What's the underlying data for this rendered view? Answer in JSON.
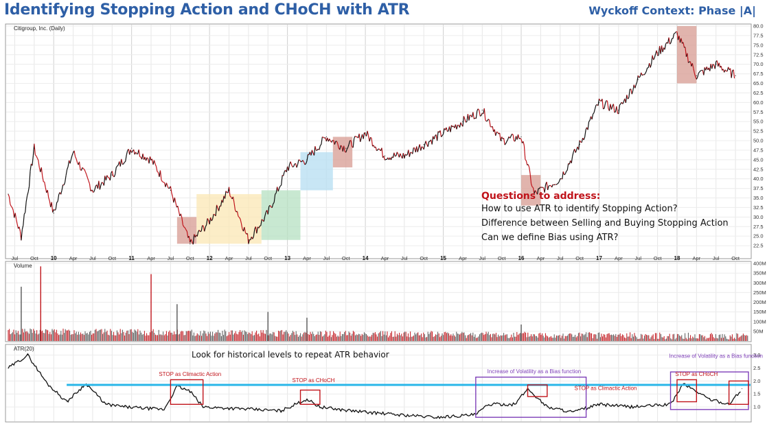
{
  "header": {
    "title": "Identifying Stopping Action and CHoCH with ATR",
    "context": "Wyckoff Context: Phase |A|"
  },
  "questions": {
    "title": "Questions to address:",
    "items": [
      "How to use ATR to identify Stopping Action?",
      "Difference between Selling and Buying Stopping Action",
      "Can we define Bias using ATR?"
    ]
  },
  "hint": "Look for historical levels to repeat ATR behavior",
  "colors": {
    "price_up": "#111111",
    "price_down": "#c0131a",
    "volume_up": "#555555",
    "volume_down": "#c0131a",
    "atr_line": "#111111",
    "reference_line": "#29b6e8",
    "box_red": "#c0131a",
    "box_purple": "#7e3fb8",
    "zone_red": "#d79b92",
    "zone_yellow": "#fbe7b4",
    "zone_green": "#b6e0c2",
    "zone_blue": "#b5def1",
    "title_blue": "#2e5fa6"
  },
  "chart_data": [
    {
      "type": "line",
      "panel": "price",
      "series": [
        {
          "name": "Citigroup, Inc. (Daily)",
          "x": [
            "2009-06",
            "2009-08",
            "2009-10",
            "2010-01",
            "2010-04",
            "2010-07",
            "2010-10",
            "2011-01",
            "2011-04",
            "2011-07",
            "2011-10",
            "2012-01",
            "2012-04",
            "2012-07",
            "2012-10",
            "2013-01",
            "2013-04",
            "2013-07",
            "2013-10",
            "2014-01",
            "2014-04",
            "2014-07",
            "2014-10",
            "2015-01",
            "2015-04",
            "2015-07",
            "2015-10",
            "2016-01",
            "2016-03",
            "2016-07",
            "2016-10",
            "2017-01",
            "2017-04",
            "2017-07",
            "2017-10",
            "2018-01",
            "2018-04",
            "2018-07",
            "2018-10"
          ],
          "values": [
            36,
            25,
            48,
            31,
            47,
            37,
            41,
            48,
            45,
            37,
            23,
            29,
            37,
            24,
            31,
            43,
            45,
            51,
            48,
            52,
            46,
            46,
            49,
            52,
            55,
            58,
            50,
            51,
            36,
            40,
            49,
            60,
            58,
            66,
            73,
            78,
            67,
            70,
            67
          ]
        }
      ],
      "yticks": [
        "22.5",
        "25.0",
        "27.5",
        "30.0",
        "32.5",
        "35.0",
        "37.5",
        "40.0",
        "42.5",
        "45.0",
        "47.5",
        "50.0",
        "52.5",
        "55.0",
        "57.5",
        "60.0",
        "62.5",
        "65.0",
        "67.5",
        "70.0",
        "72.5",
        "75.0",
        "77.5",
        "80.0"
      ],
      "ylim": [
        20,
        80
      ],
      "xticks": [
        "Jul",
        "Oct",
        "10",
        "Apr",
        "Jul",
        "Oct",
        "11",
        "Apr",
        "Jul",
        "Oct",
        "12",
        "Apr",
        "Jul",
        "Oct",
        "13",
        "Apr",
        "Jul",
        "Oct",
        "14",
        "Apr",
        "Jul",
        "Oct",
        "15",
        "Apr",
        "Jul",
        "Oct",
        "16",
        "Apr",
        "Jul",
        "Oct",
        "17",
        "Apr",
        "Jul",
        "Oct",
        "18",
        "Apr",
        "Jul",
        "Oct"
      ]
    },
    {
      "type": "bar",
      "panel": "volume",
      "label": "Volume",
      "yticks": [
        "50M",
        "100M",
        "150M",
        "200M",
        "250M",
        "300M",
        "350M",
        "400M"
      ],
      "ylim": [
        0,
        400
      ],
      "spikes": [
        {
          "x": "2009-08",
          "value": 280
        },
        {
          "x": "2009-11",
          "value": 385
        },
        {
          "x": "2011-04",
          "value": 345
        },
        {
          "x": "2011-08",
          "value": 190
        },
        {
          "x": "2012-10",
          "value": 150
        },
        {
          "x": "2013-04",
          "value": 120
        },
        {
          "x": "2016-01",
          "value": 85
        }
      ]
    },
    {
      "type": "line",
      "panel": "atr",
      "series": [
        {
          "name": "ATR(20)",
          "x": [
            "2009-06",
            "2009-09",
            "2009-12",
            "2010-03",
            "2010-06",
            "2010-09",
            "2010-12",
            "2011-03",
            "2011-06",
            "2011-08",
            "2011-10",
            "2011-12",
            "2012-04",
            "2012-08",
            "2012-12",
            "2013-04",
            "2013-06",
            "2013-09",
            "2014-01",
            "2014-06",
            "2014-12",
            "2015-06",
            "2015-08",
            "2015-12",
            "2016-02",
            "2016-05",
            "2016-09",
            "2017-01",
            "2017-06",
            "2017-12",
            "2018-02",
            "2018-06",
            "2018-09",
            "2018-11"
          ],
          "values": [
            2.5,
            3.0,
            1.9,
            1.2,
            1.9,
            1.1,
            1.0,
            0.95,
            0.9,
            1.8,
            1.6,
            1.0,
            0.95,
            0.9,
            0.85,
            1.3,
            1.0,
            0.9,
            0.8,
            0.7,
            0.6,
            0.7,
            1.1,
            1.1,
            1.7,
            1.0,
            0.8,
            1.1,
            1.0,
            1.1,
            1.9,
            1.3,
            1.1,
            1.7
          ]
        }
      ],
      "reference_level": 1.85,
      "yticks": [
        "1.0",
        "1.5",
        "2.0",
        "2.5",
        "3.0"
      ],
      "ylim": [
        0.5,
        3.2
      ],
      "annotations": [
        {
          "text": "STOP as Climactic Action",
          "color": "red"
        },
        {
          "text": "STOP as CHoCH",
          "color": "red"
        },
        {
          "text": "Increase of Volatility as a Bias function",
          "color": "purple"
        },
        {
          "text": "STOP as Climactic Action",
          "color": "red"
        },
        {
          "text": "Increase of Volatility as a Bias function",
          "color": "purple"
        },
        {
          "text": "STOP as CHoCH",
          "color": "red"
        }
      ]
    }
  ]
}
